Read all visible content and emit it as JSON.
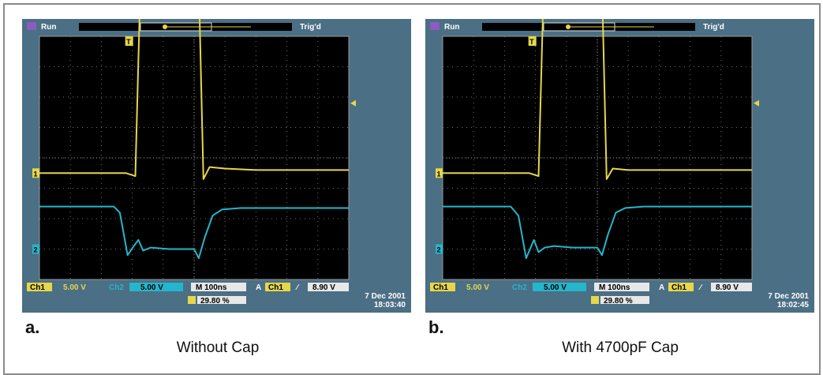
{
  "figure": {
    "panels": [
      {
        "letter": "a.",
        "caption": "Without Cap",
        "run_label": "Run",
        "trig_label": "Trig'd",
        "ch1_label": "Ch1",
        "ch1_scale": "5.00 V",
        "ch2_label": "Ch2",
        "ch2_scale": "5.00 V",
        "time_label": "M 100ns",
        "trigger_label": "A",
        "trigger_source": "Ch1",
        "trigger_slope": "∕",
        "trigger_level": "8.90 V",
        "date": "7 Dec 2001",
        "time": "18:03:40",
        "cursor_readout": "29.80 %",
        "ch1_marker": "1",
        "ch2_marker": "2",
        "trigger_marker": "T"
      },
      {
        "letter": "b.",
        "caption": "With 4700pF Cap",
        "run_label": "Run",
        "trig_label": "Trig'd",
        "ch1_label": "Ch1",
        "ch1_scale": "5.00 V",
        "ch2_label": "Ch2",
        "ch2_scale": "5.00 V",
        "time_label": "M 100ns",
        "trigger_label": "A",
        "trigger_source": "Ch1",
        "trigger_slope": "∕",
        "trigger_level": "8.90 V",
        "date": "7 Dec 2001",
        "time": "18:02:45",
        "cursor_readout": "29.80 %",
        "ch1_marker": "1",
        "ch2_marker": "2",
        "trigger_marker": "T"
      }
    ]
  },
  "chart_data": [
    {
      "type": "line",
      "x_divisions": 10,
      "y_divisions": 8,
      "series": [
        {
          "color": "#e6d64a",
          "x": [
            0,
            2.8,
            3.1,
            3.25,
            3.4,
            3.55,
            3.7,
            3.85,
            4.0,
            4.2,
            4.4,
            4.6,
            4.8,
            5.0,
            5.15,
            5.3,
            5.5,
            6.0,
            7.0,
            8.0,
            9.0,
            10.0
          ],
          "y": [
            -0.5,
            -0.5,
            -0.6,
            5.2,
            7.3,
            4.9,
            6.6,
            5.4,
            6.3,
            5.6,
            6.1,
            5.7,
            5.9,
            5.8,
            5.8,
            -0.7,
            -0.3,
            -0.35,
            -0.4,
            -0.4,
            -0.4,
            -0.4
          ]
        },
        {
          "color": "#24b6cc",
          "x": [
            0,
            2.4,
            2.6,
            2.85,
            3.05,
            3.2,
            3.35,
            3.6,
            4.2,
            5.0,
            5.15,
            5.35,
            5.6,
            5.9,
            6.5,
            8.0,
            10.0
          ],
          "y": [
            -1.6,
            -1.6,
            -1.8,
            -3.2,
            -2.9,
            -2.7,
            -3.05,
            -2.95,
            -3.0,
            -3.0,
            -3.3,
            -2.6,
            -1.9,
            -1.7,
            -1.65,
            -1.65,
            -1.65
          ]
        }
      ]
    },
    {
      "type": "line",
      "x_divisions": 10,
      "y_divisions": 8,
      "series": [
        {
          "color": "#e6d64a",
          "x": [
            0,
            2.8,
            3.1,
            3.25,
            3.4,
            3.55,
            3.7,
            3.85,
            4.0,
            4.2,
            4.4,
            4.6,
            4.8,
            5.0,
            5.15,
            5.3,
            5.5,
            6.0,
            7.0,
            8.0,
            9.0,
            10.0
          ],
          "y": [
            -0.5,
            -0.5,
            -0.6,
            5.1,
            7.3,
            5.0,
            6.5,
            5.4,
            6.2,
            5.6,
            6.0,
            5.7,
            5.8,
            5.7,
            5.7,
            -0.7,
            -0.35,
            -0.4,
            -0.4,
            -0.4,
            -0.4,
            -0.4
          ]
        },
        {
          "color": "#24b6cc",
          "x": [
            0,
            2.2,
            2.45,
            2.7,
            2.95,
            3.1,
            3.3,
            3.6,
            4.2,
            5.0,
            5.15,
            5.35,
            5.6,
            5.9,
            6.5,
            8.0,
            10.0
          ],
          "y": [
            -1.6,
            -1.6,
            -1.9,
            -3.3,
            -2.7,
            -3.1,
            -2.95,
            -2.9,
            -2.95,
            -2.95,
            -3.2,
            -2.5,
            -1.8,
            -1.65,
            -1.6,
            -1.6,
            -1.6
          ]
        }
      ]
    }
  ]
}
